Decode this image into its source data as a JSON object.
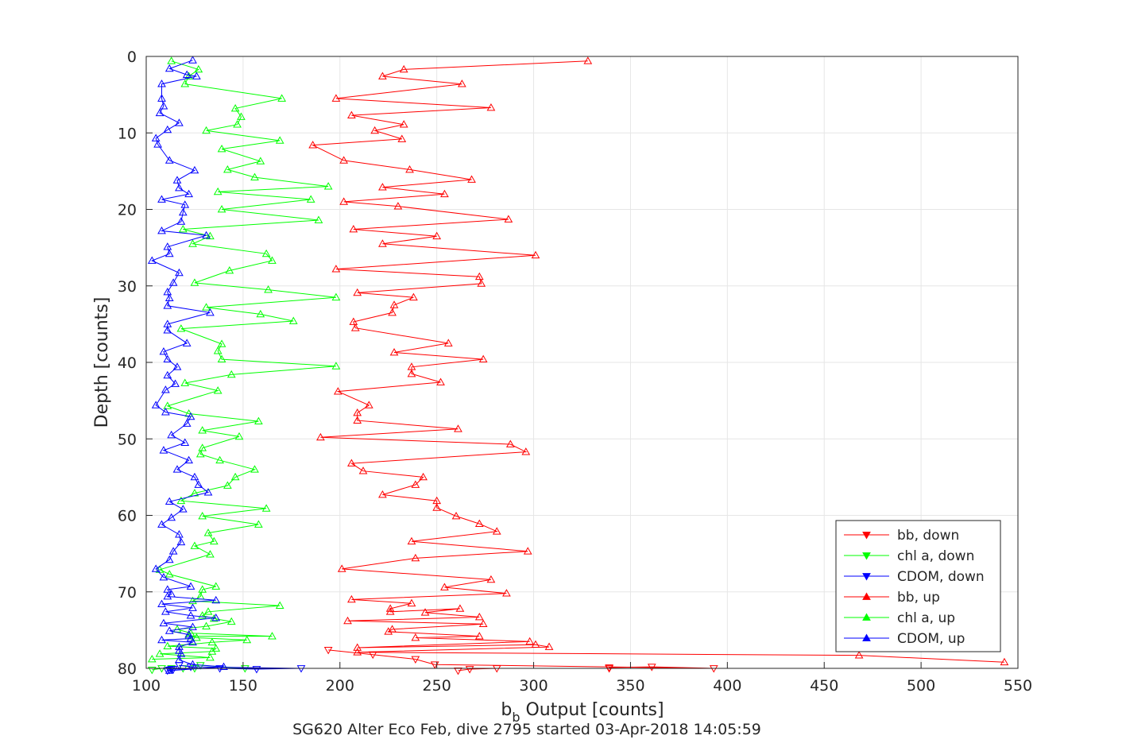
{
  "chart_data": {
    "type": "line",
    "xlabel_main": "b",
    "xlabel_sub": "b",
    "xlabel_rest": " Output [counts]",
    "ylabel": "Depth [counts]",
    "caption": "SG620 Alter Eco Feb, dive 2795 started 03-Apr-2018 14:05:59",
    "xlim": [
      100,
      550
    ],
    "ylim": [
      80,
      0
    ],
    "y_reversed": true,
    "xticks": [
      "100",
      "150",
      "200",
      "250",
      "300",
      "350",
      "400",
      "450",
      "500",
      "550"
    ],
    "yticks": [
      "0",
      "10",
      "20",
      "30",
      "40",
      "50",
      "60",
      "70",
      "80"
    ],
    "grid": true,
    "legend_position": "bottom-right",
    "series": [
      {
        "name": "bb, down",
        "color": "#ff0000",
        "marker": "triangle-down",
        "points": [
          [
            261,
            80.3
          ],
          [
            267,
            80.1
          ],
          [
            281,
            80.0
          ],
          [
            339,
            80.0
          ],
          [
            339,
            79.9
          ],
          [
            361,
            79.8
          ],
          [
            393,
            80.0
          ],
          [
            249,
            79.5
          ],
          [
            239,
            78.8
          ],
          [
            217,
            78.2
          ],
          [
            194,
            77.6
          ]
        ]
      },
      {
        "name": "chl a, down",
        "color": "#00ff00",
        "marker": "triangle-down",
        "points": [
          [
            103,
            80.2
          ],
          [
            108,
            80.0
          ],
          [
            113,
            80.0
          ],
          [
            119,
            80.0
          ],
          [
            125,
            80.0
          ],
          [
            151,
            80.0
          ],
          [
            128,
            79.6
          ]
        ]
      },
      {
        "name": "CDOM, down",
        "color": "#0000ff",
        "marker": "triangle-down",
        "points": [
          [
            113,
            80.1
          ],
          [
            112,
            80.2
          ],
          [
            111,
            80.3
          ],
          [
            114,
            80.1
          ],
          [
            138,
            80.0
          ],
          [
            157,
            80.1
          ],
          [
            180,
            80.0
          ],
          [
            123,
            79.8
          ],
          [
            117,
            79.6
          ]
        ]
      },
      {
        "name": "bb, up",
        "color": "#ff0000",
        "marker": "triangle-up",
        "points": [
          [
            543,
            79.2
          ],
          [
            468,
            78.3
          ],
          [
            209,
            77.9
          ],
          [
            308,
            77.2
          ],
          [
            301,
            76.9
          ],
          [
            209,
            77.3
          ],
          [
            298,
            76.5
          ],
          [
            239,
            76.0
          ],
          [
            272,
            75.8
          ],
          [
            225,
            75.2
          ],
          [
            227,
            74.9
          ],
          [
            274,
            74.2
          ],
          [
            204,
            73.8
          ],
          [
            272,
            73.3
          ],
          [
            244,
            72.7
          ],
          [
            262,
            72.2
          ],
          [
            226,
            72.6
          ],
          [
            226,
            72.2
          ],
          [
            237,
            71.5
          ],
          [
            206,
            71.0
          ],
          [
            286,
            70.2
          ],
          [
            254,
            69.4
          ],
          [
            278,
            68.4
          ],
          [
            201,
            67.0
          ],
          [
            239,
            65.6
          ],
          [
            297,
            64.7
          ],
          [
            237,
            63.4
          ],
          [
            281,
            62.1
          ],
          [
            272,
            61.1
          ],
          [
            260,
            60.1
          ],
          [
            250,
            59.0
          ],
          [
            250,
            58.1
          ],
          [
            222,
            57.3
          ],
          [
            239,
            56.0
          ],
          [
            243,
            55.0
          ],
          [
            212,
            54.2
          ],
          [
            206,
            53.2
          ],
          [
            296,
            51.7
          ],
          [
            288,
            50.7
          ],
          [
            190,
            49.8
          ],
          [
            261,
            48.7
          ],
          [
            209,
            47.6
          ],
          [
            209,
            46.6
          ],
          [
            215,
            45.6
          ],
          [
            199,
            43.8
          ],
          [
            252,
            42.6
          ],
          [
            237,
            41.5
          ],
          [
            237,
            40.6
          ],
          [
            274,
            39.6
          ],
          [
            228,
            38.7
          ],
          [
            256,
            37.5
          ],
          [
            208,
            35.5
          ],
          [
            207,
            34.7
          ],
          [
            227,
            33.5
          ],
          [
            228,
            32.5
          ],
          [
            238,
            31.5
          ],
          [
            209,
            30.9
          ],
          [
            273,
            29.7
          ],
          [
            272,
            28.8
          ],
          [
            198,
            27.8
          ],
          [
            301,
            26.0
          ],
          [
            222,
            24.5
          ],
          [
            250,
            23.5
          ],
          [
            207,
            22.6
          ],
          [
            287,
            21.3
          ],
          [
            230,
            19.6
          ],
          [
            202,
            19.0
          ],
          [
            254,
            18.0
          ],
          [
            222,
            17.1
          ],
          [
            268,
            16.1
          ],
          [
            236,
            14.8
          ],
          [
            202,
            13.6
          ],
          [
            186,
            11.6
          ],
          [
            232,
            10.8
          ],
          [
            218,
            9.7
          ],
          [
            233,
            8.9
          ],
          [
            206,
            7.7
          ],
          [
            278,
            6.7
          ],
          [
            198,
            5.5
          ],
          [
            263,
            3.6
          ],
          [
            222,
            2.6
          ],
          [
            233,
            1.7
          ],
          [
            328,
            0.6
          ]
        ]
      },
      {
        "name": "chl a, up",
        "color": "#00ff00",
        "marker": "triangle-up",
        "points": [
          [
            103,
            78.8
          ],
          [
            133,
            78.6
          ],
          [
            107,
            78.1
          ],
          [
            134,
            77.8
          ],
          [
            136,
            77.4
          ],
          [
            111,
            77.1
          ],
          [
            134,
            76.6
          ],
          [
            152,
            76.3
          ],
          [
            126,
            76.0
          ],
          [
            122,
            75.8
          ],
          [
            165,
            75.8
          ],
          [
            123,
            75.4
          ],
          [
            116,
            74.9
          ],
          [
            131,
            74.5
          ],
          [
            144,
            73.9
          ],
          [
            135,
            73.5
          ],
          [
            129,
            73.1
          ],
          [
            132,
            72.6
          ],
          [
            169,
            71.8
          ],
          [
            124,
            71.2
          ],
          [
            128,
            70.6
          ],
          [
            129,
            69.7
          ],
          [
            136,
            69.3
          ],
          [
            112,
            67.7
          ],
          [
            107,
            67.1
          ],
          [
            133,
            65.1
          ],
          [
            125,
            64.0
          ],
          [
            135,
            63.4
          ],
          [
            132,
            62.3
          ],
          [
            158,
            61.2
          ],
          [
            129,
            60.1
          ],
          [
            162,
            59.1
          ],
          [
            118,
            58.1
          ],
          [
            125,
            57.1
          ],
          [
            142,
            56.1
          ],
          [
            146,
            55.0
          ],
          [
            156,
            54.0
          ],
          [
            138,
            52.8
          ],
          [
            128,
            52.0
          ],
          [
            129,
            51.2
          ],
          [
            148,
            49.7
          ],
          [
            129,
            48.9
          ],
          [
            158,
            47.7
          ],
          [
            122,
            46.7
          ],
          [
            111,
            45.7
          ],
          [
            137,
            43.7
          ],
          [
            120,
            42.7
          ],
          [
            144,
            41.6
          ],
          [
            198,
            40.5
          ],
          [
            139,
            39.6
          ],
          [
            137,
            38.5
          ],
          [
            139,
            37.6
          ],
          [
            118,
            35.6
          ],
          [
            176,
            34.6
          ],
          [
            159,
            33.7
          ],
          [
            131,
            32.8
          ],
          [
            198,
            31.5
          ],
          [
            163,
            30.5
          ],
          [
            125,
            29.6
          ],
          [
            143,
            28.0
          ],
          [
            165,
            26.7
          ],
          [
            162,
            25.8
          ],
          [
            124,
            24.5
          ],
          [
            133,
            23.5
          ],
          [
            119,
            22.6
          ],
          [
            189,
            21.4
          ],
          [
            139,
            20.0
          ],
          [
            185,
            18.7
          ],
          [
            137,
            17.7
          ],
          [
            194,
            17.0
          ],
          [
            156,
            15.8
          ],
          [
            142,
            14.8
          ],
          [
            159,
            13.7
          ],
          [
            139,
            12.1
          ],
          [
            169,
            11.0
          ],
          [
            131,
            9.7
          ],
          [
            147,
            8.9
          ],
          [
            149,
            7.9
          ],
          [
            146,
            6.8
          ],
          [
            170,
            5.5
          ],
          [
            120,
            3.6
          ],
          [
            122,
            2.6
          ],
          [
            127,
            1.7
          ],
          [
            113,
            0.6
          ]
        ]
      },
      {
        "name": "CDOM, up",
        "color": "#0000ff",
        "marker": "triangle-up",
        "points": [
          [
            112,
            80.3
          ],
          [
            140,
            79.8
          ],
          [
            124,
            79.5
          ],
          [
            117,
            78.9
          ],
          [
            118,
            78.1
          ],
          [
            117,
            77.7
          ],
          [
            117,
            77.2
          ],
          [
            124,
            76.6
          ],
          [
            108,
            76.3
          ],
          [
            123,
            76.1
          ],
          [
            122,
            75.6
          ],
          [
            112,
            75.1
          ],
          [
            124,
            74.6
          ],
          [
            109,
            74.1
          ],
          [
            136,
            73.4
          ],
          [
            123,
            73.1
          ],
          [
            110,
            72.6
          ],
          [
            124,
            72.1
          ],
          [
            108,
            71.6
          ],
          [
            136,
            71.1
          ],
          [
            111,
            70.6
          ],
          [
            113,
            70.3
          ],
          [
            111,
            69.7
          ],
          [
            123,
            69.3
          ],
          [
            109,
            68.1
          ],
          [
            105,
            67.0
          ],
          [
            112,
            65.8
          ],
          [
            114,
            64.7
          ],
          [
            118,
            63.5
          ],
          [
            117,
            62.5
          ],
          [
            108,
            61.2
          ],
          [
            113,
            60.3
          ],
          [
            119,
            59.2
          ],
          [
            112,
            58.2
          ],
          [
            132,
            57.0
          ],
          [
            127,
            56.0
          ],
          [
            125,
            55.0
          ],
          [
            116,
            54.0
          ],
          [
            122,
            52.8
          ],
          [
            109,
            51.5
          ],
          [
            120,
            50.5
          ],
          [
            113,
            49.5
          ],
          [
            121,
            48.0
          ],
          [
            123,
            47.1
          ],
          [
            110,
            46.5
          ],
          [
            105,
            45.6
          ],
          [
            110,
            43.6
          ],
          [
            115,
            42.8
          ],
          [
            111,
            41.7
          ],
          [
            116,
            40.6
          ],
          [
            111,
            39.6
          ],
          [
            109,
            38.6
          ],
          [
            121,
            37.5
          ],
          [
            111,
            35.8
          ],
          [
            111,
            35.0
          ],
          [
            133,
            33.5
          ],
          [
            111,
            32.6
          ],
          [
            112,
            31.6
          ],
          [
            111,
            30.8
          ],
          [
            114,
            29.6
          ],
          [
            117,
            28.3
          ],
          [
            103,
            26.7
          ],
          [
            112,
            25.8
          ],
          [
            111,
            24.9
          ],
          [
            131,
            23.4
          ],
          [
            108,
            22.8
          ],
          [
            118,
            21.6
          ],
          [
            119,
            20.4
          ],
          [
            120,
            19.4
          ],
          [
            108,
            18.7
          ],
          [
            122,
            18.0
          ],
          [
            117,
            17.2
          ],
          [
            116,
            16.2
          ],
          [
            125,
            14.9
          ],
          [
            112,
            13.6
          ],
          [
            106,
            11.5
          ],
          [
            105,
            10.7
          ],
          [
            111,
            9.6
          ],
          [
            117,
            8.7
          ],
          [
            107,
            7.4
          ],
          [
            109,
            6.5
          ],
          [
            108,
            5.5
          ],
          [
            108,
            3.6
          ],
          [
            126,
            2.6
          ],
          [
            121,
            2.4
          ],
          [
            112,
            1.6
          ],
          [
            124,
            0.5
          ]
        ]
      }
    ]
  }
}
